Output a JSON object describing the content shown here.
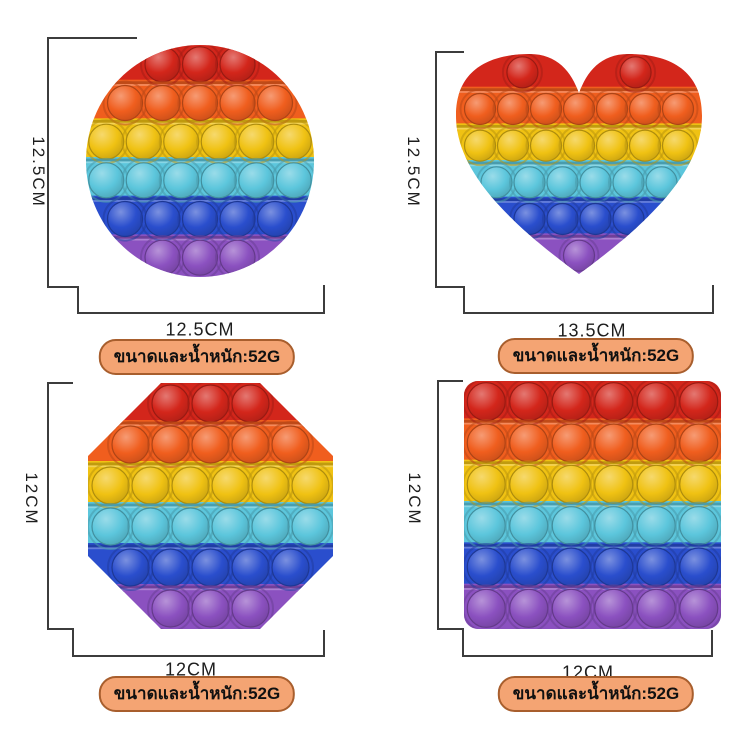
{
  "products": [
    {
      "shape": "circle",
      "height_label": "12.5CM",
      "width_label": "12.5CM",
      "weight_label": "ขนาดและน้ำหนัก:52G",
      "bubble_rows": [
        3,
        5,
        6,
        6,
        5,
        3
      ]
    },
    {
      "shape": "heart",
      "height_label": "12.5CM",
      "width_label": "13.5CM",
      "weight_label": "ขนาดและน้ำหนัก:52G",
      "bubble_rows": [
        2,
        7,
        7,
        6,
        4,
        1
      ]
    },
    {
      "shape": "octagon",
      "height_label": "12CM",
      "width_label": "12CM",
      "weight_label": "ขนาดและน้ำหนัก:52G",
      "bubble_rows": [
        3,
        5,
        6,
        6,
        5,
        3
      ]
    },
    {
      "shape": "square",
      "height_label": "12CM",
      "width_label": "12CM",
      "weight_label": "ขนาดและน้ำหนัก:52G",
      "bubble_rows": [
        6,
        6,
        6,
        6,
        6,
        6
      ]
    }
  ],
  "colors": {
    "rainbow_stripes": [
      "#d3261b",
      "#f05e1e",
      "#f0c213",
      "#5cc6dc",
      "#2a4ecd",
      "#8b51c0"
    ],
    "dimension_line": "#3c3c3c",
    "dimension_text": "#1d1d1d",
    "badge_background": "#f4a473",
    "badge_border": "#a85e2d",
    "badge_text": "#111111",
    "page_background": "#ffffff"
  }
}
